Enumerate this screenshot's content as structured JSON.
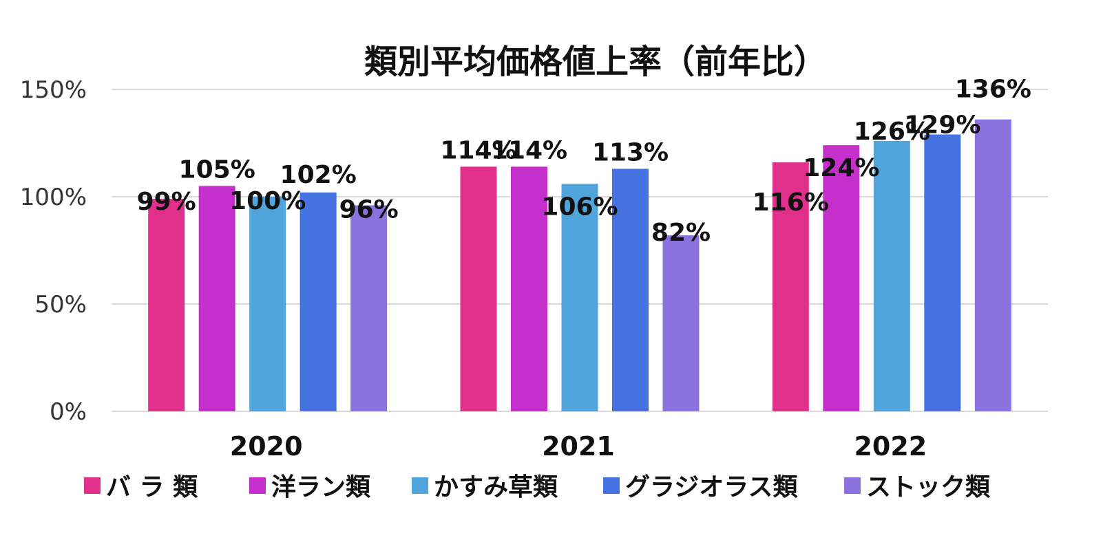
{
  "chart_data": {
    "type": "bar",
    "title": "類別平均価格値上率（前年比）",
    "categories": [
      "2020",
      "2021",
      "2022"
    ],
    "series": [
      {
        "name": "バ ラ 類",
        "color": "#e0308c",
        "values": [
          99,
          114,
          116
        ],
        "labels": [
          "99%",
          "114%",
          "116%"
        ]
      },
      {
        "name": "洋ラン類",
        "color": "#c530cc",
        "values": [
          105,
          114,
          124
        ],
        "labels": [
          "105%",
          "114%",
          "124%"
        ]
      },
      {
        "name": "かすみ草類",
        "color": "#50a5dc",
        "values": [
          100,
          106,
          126
        ],
        "labels": [
          "100%",
          "106%",
          "126%"
        ]
      },
      {
        "name": "グラジオラス類",
        "color": "#4472e0",
        "values": [
          102,
          113,
          129
        ],
        "labels": [
          "102%",
          "113%",
          "129%"
        ]
      },
      {
        "name": "ストック類",
        "color": "#8b72df",
        "values": [
          96,
          82,
          136
        ],
        "labels": [
          "96%",
          "82%",
          "136%"
        ]
      }
    ],
    "ylim": [
      0,
      150
    ],
    "yticks": [
      "0%",
      "50%",
      "100%",
      "150%"
    ],
    "ytick_values": [
      0,
      50,
      100,
      150
    ],
    "grid": true,
    "legend": "bottom"
  }
}
